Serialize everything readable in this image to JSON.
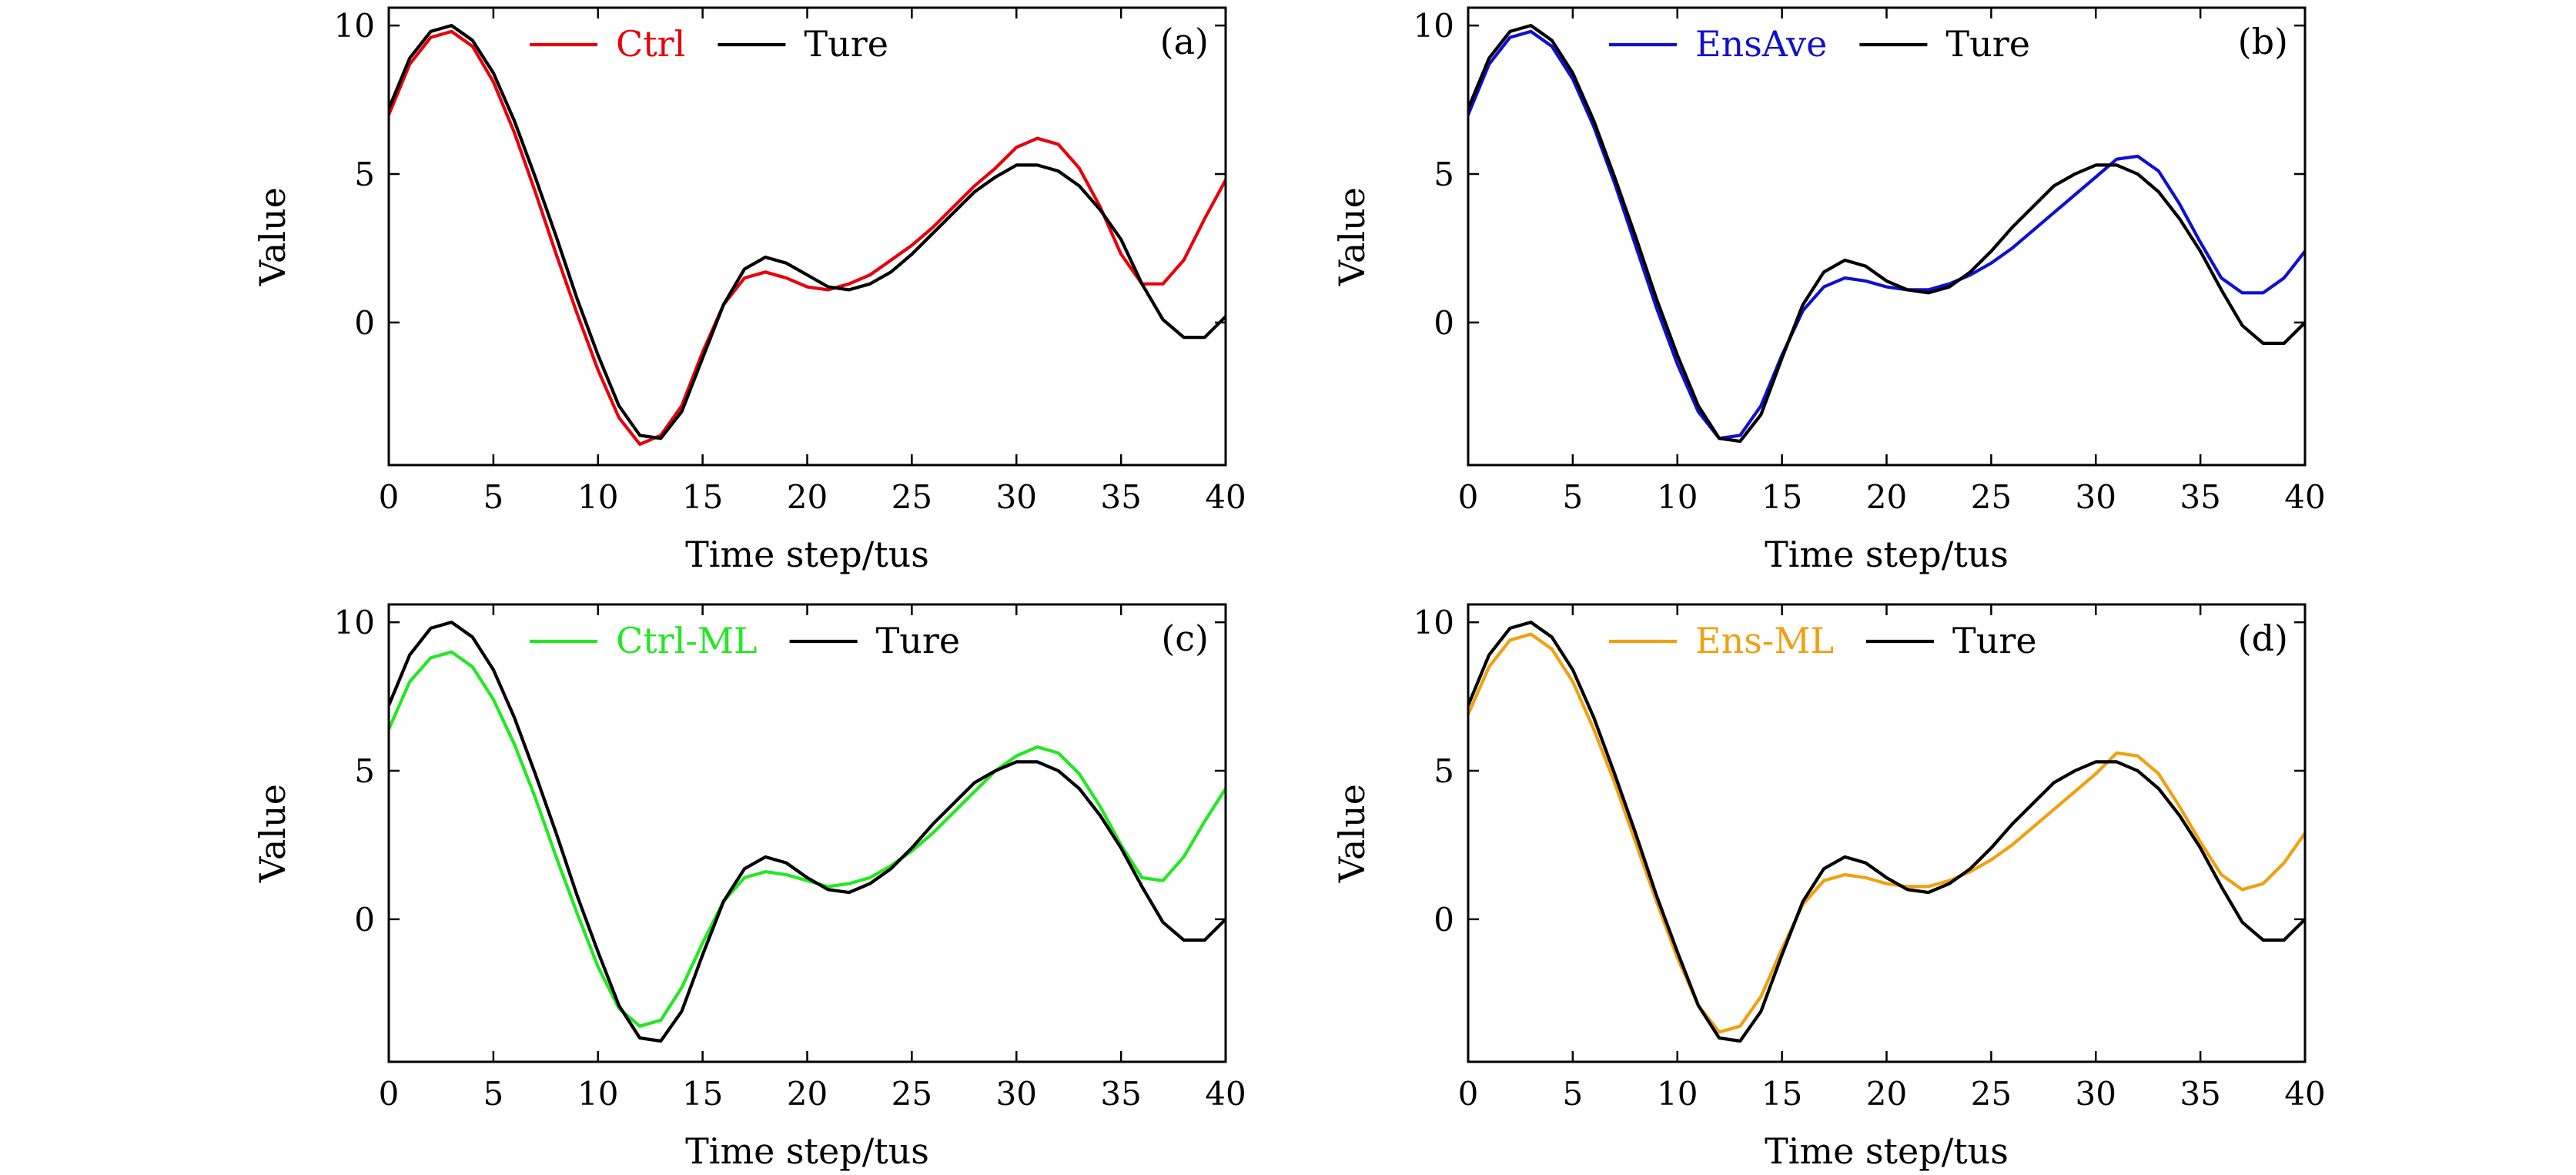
{
  "chart_data": [
    {
      "type": "line",
      "panel": "(a)",
      "xlabel": "Time step/tus",
      "ylabel": "Value",
      "xlim": [
        0,
        40
      ],
      "ylim": [
        -4.8,
        10.6
      ],
      "xticks": [
        0,
        5,
        10,
        15,
        20,
        25,
        30,
        35,
        40
      ],
      "yticks": [
        0,
        5,
        10
      ],
      "legend_position": "top-center",
      "series": [
        {
          "name": "Ctrl",
          "color": "#e8000b",
          "x": [
            0,
            1,
            2,
            3,
            4,
            5,
            6,
            7,
            8,
            9,
            10,
            11,
            12,
            13,
            14,
            15,
            16,
            17,
            18,
            19,
            20,
            21,
            22,
            23,
            24,
            25,
            26,
            27,
            28,
            29,
            30,
            31,
            32,
            33,
            34,
            35,
            36,
            37,
            38,
            39,
            40
          ],
          "values": [
            7.0,
            8.7,
            9.6,
            9.8,
            9.3,
            8.1,
            6.4,
            4.4,
            2.3,
            0.3,
            -1.6,
            -3.2,
            -4.1,
            -3.8,
            -2.8,
            -1.0,
            0.6,
            1.5,
            1.7,
            1.5,
            1.2,
            1.1,
            1.3,
            1.6,
            2.1,
            2.6,
            3.2,
            3.9,
            4.6,
            5.2,
            5.9,
            6.2,
            6.0,
            5.2,
            3.9,
            2.3,
            1.3,
            1.3,
            2.1,
            3.5,
            4.8
          ]
        },
        {
          "name": "Ture",
          "color": "#000000",
          "x": [
            0,
            1,
            2,
            3,
            4,
            5,
            6,
            7,
            8,
            9,
            10,
            11,
            12,
            13,
            14,
            15,
            16,
            17,
            18,
            19,
            20,
            21,
            22,
            23,
            24,
            25,
            26,
            27,
            28,
            29,
            30,
            31,
            32,
            33,
            34,
            35,
            36,
            37,
            38,
            39,
            40
          ],
          "values": [
            7.2,
            8.9,
            9.8,
            10.0,
            9.5,
            8.4,
            6.8,
            4.9,
            2.9,
            0.8,
            -1.1,
            -2.8,
            -3.8,
            -3.9,
            -3.0,
            -1.2,
            0.6,
            1.8,
            2.2,
            2.0,
            1.6,
            1.2,
            1.1,
            1.3,
            1.7,
            2.3,
            3.0,
            3.7,
            4.4,
            4.9,
            5.3,
            5.3,
            5.1,
            4.6,
            3.8,
            2.8,
            1.3,
            0.1,
            -0.5,
            -0.5,
            0.2
          ]
        }
      ]
    },
    {
      "type": "line",
      "panel": "(b)",
      "xlabel": "Time step/tus",
      "ylabel": "Value",
      "xlim": [
        0,
        40
      ],
      "ylim": [
        -4.8,
        10.6
      ],
      "xticks": [
        0,
        5,
        10,
        15,
        20,
        25,
        30,
        35,
        40
      ],
      "yticks": [
        0,
        5,
        10
      ],
      "legend_position": "top-center",
      "series": [
        {
          "name": "EnsAve",
          "color": "#1010d0",
          "x": [
            0,
            1,
            2,
            3,
            4,
            5,
            6,
            7,
            8,
            9,
            10,
            11,
            12,
            13,
            14,
            15,
            16,
            17,
            18,
            19,
            20,
            21,
            22,
            23,
            24,
            25,
            26,
            27,
            28,
            29,
            30,
            31,
            32,
            33,
            34,
            35,
            36,
            37,
            38,
            39,
            40
          ],
          "values": [
            7.0,
            8.7,
            9.6,
            9.8,
            9.3,
            8.2,
            6.6,
            4.7,
            2.6,
            0.5,
            -1.4,
            -3.0,
            -3.9,
            -3.8,
            -2.8,
            -1.1,
            0.4,
            1.2,
            1.5,
            1.4,
            1.2,
            1.1,
            1.1,
            1.3,
            1.6,
            2.0,
            2.5,
            3.1,
            3.7,
            4.3,
            4.9,
            5.5,
            5.6,
            5.1,
            4.0,
            2.7,
            1.5,
            1.0,
            1.0,
            1.5,
            2.4
          ]
        },
        {
          "name": "Ture",
          "color": "#000000",
          "x": [
            0,
            1,
            2,
            3,
            4,
            5,
            6,
            7,
            8,
            9,
            10,
            11,
            12,
            13,
            14,
            15,
            16,
            17,
            18,
            19,
            20,
            21,
            22,
            23,
            24,
            25,
            26,
            27,
            28,
            29,
            30,
            31,
            32,
            33,
            34,
            35,
            36,
            37,
            38,
            39,
            40
          ],
          "values": [
            7.2,
            8.9,
            9.8,
            10.0,
            9.5,
            8.4,
            6.8,
            4.9,
            2.9,
            0.8,
            -1.1,
            -2.8,
            -3.9,
            -4.0,
            -3.1,
            -1.2,
            0.6,
            1.7,
            2.1,
            1.9,
            1.4,
            1.1,
            1.0,
            1.2,
            1.7,
            2.4,
            3.2,
            3.9,
            4.6,
            5.0,
            5.3,
            5.3,
            5.0,
            4.4,
            3.5,
            2.4,
            1.1,
            -0.1,
            -0.7,
            -0.7,
            0.0
          ]
        }
      ]
    },
    {
      "type": "line",
      "panel": "(c)",
      "xlabel": "Time step/tus",
      "ylabel": "Value",
      "xlim": [
        0,
        40
      ],
      "ylim": [
        -4.8,
        10.6
      ],
      "xticks": [
        0,
        5,
        10,
        15,
        20,
        25,
        30,
        35,
        40
      ],
      "yticks": [
        0,
        5,
        10
      ],
      "legend_position": "top-center",
      "series": [
        {
          "name": "Ctrl-ML",
          "color": "#22e822",
          "x": [
            0,
            1,
            2,
            3,
            4,
            5,
            6,
            7,
            8,
            9,
            10,
            11,
            12,
            13,
            14,
            15,
            16,
            17,
            18,
            19,
            20,
            21,
            22,
            23,
            24,
            25,
            26,
            27,
            28,
            29,
            30,
            31,
            32,
            33,
            34,
            35,
            36,
            37,
            38,
            39,
            40
          ],
          "values": [
            6.4,
            8.0,
            8.8,
            9.0,
            8.5,
            7.4,
            5.9,
            4.1,
            2.1,
            0.2,
            -1.6,
            -3.0,
            -3.6,
            -3.4,
            -2.3,
            -0.8,
            0.6,
            1.4,
            1.6,
            1.5,
            1.3,
            1.1,
            1.2,
            1.4,
            1.8,
            2.3,
            2.9,
            3.6,
            4.3,
            5.0,
            5.5,
            5.8,
            5.6,
            4.9,
            3.8,
            2.5,
            1.4,
            1.3,
            2.1,
            3.3,
            4.4
          ]
        },
        {
          "name": "Ture",
          "color": "#000000",
          "x": [
            0,
            1,
            2,
            3,
            4,
            5,
            6,
            7,
            8,
            9,
            10,
            11,
            12,
            13,
            14,
            15,
            16,
            17,
            18,
            19,
            20,
            21,
            22,
            23,
            24,
            25,
            26,
            27,
            28,
            29,
            30,
            31,
            32,
            33,
            34,
            35,
            36,
            37,
            38,
            39,
            40
          ],
          "values": [
            7.2,
            8.9,
            9.8,
            10.0,
            9.5,
            8.4,
            6.8,
            4.9,
            2.9,
            0.8,
            -1.1,
            -2.9,
            -4.0,
            -4.1,
            -3.1,
            -1.2,
            0.6,
            1.7,
            2.1,
            1.9,
            1.4,
            1.0,
            0.9,
            1.2,
            1.7,
            2.4,
            3.2,
            3.9,
            4.6,
            5.0,
            5.3,
            5.3,
            5.0,
            4.4,
            3.5,
            2.4,
            1.1,
            -0.1,
            -0.7,
            -0.7,
            0.0
          ]
        }
      ]
    },
    {
      "type": "line",
      "panel": "(d)",
      "xlabel": "Time step/tus",
      "ylabel": "Value",
      "xlim": [
        0,
        40
      ],
      "ylim": [
        -4.8,
        10.6
      ],
      "xticks": [
        0,
        5,
        10,
        15,
        20,
        25,
        30,
        35,
        40
      ],
      "yticks": [
        0,
        5,
        10
      ],
      "legend_position": "top-center",
      "series": [
        {
          "name": "Ens-ML",
          "color": "#f0a010",
          "x": [
            0,
            1,
            2,
            3,
            4,
            5,
            6,
            7,
            8,
            9,
            10,
            11,
            12,
            13,
            14,
            15,
            16,
            17,
            18,
            19,
            20,
            21,
            22,
            23,
            24,
            25,
            26,
            27,
            28,
            29,
            30,
            31,
            32,
            33,
            34,
            35,
            36,
            37,
            38,
            39,
            40
          ],
          "values": [
            6.9,
            8.5,
            9.4,
            9.6,
            9.1,
            8.0,
            6.4,
            4.6,
            2.6,
            0.6,
            -1.3,
            -2.9,
            -3.8,
            -3.6,
            -2.6,
            -1.0,
            0.5,
            1.3,
            1.5,
            1.4,
            1.2,
            1.1,
            1.1,
            1.3,
            1.6,
            2.0,
            2.5,
            3.1,
            3.7,
            4.3,
            4.9,
            5.6,
            5.5,
            4.9,
            3.8,
            2.6,
            1.5,
            1.0,
            1.2,
            1.9,
            2.9
          ]
        },
        {
          "name": "Ture",
          "color": "#000000",
          "x": [
            0,
            1,
            2,
            3,
            4,
            5,
            6,
            7,
            8,
            9,
            10,
            11,
            12,
            13,
            14,
            15,
            16,
            17,
            18,
            19,
            20,
            21,
            22,
            23,
            24,
            25,
            26,
            27,
            28,
            29,
            30,
            31,
            32,
            33,
            34,
            35,
            36,
            37,
            38,
            39,
            40
          ],
          "values": [
            7.2,
            8.9,
            9.8,
            10.0,
            9.5,
            8.4,
            6.8,
            4.9,
            2.9,
            0.8,
            -1.1,
            -2.9,
            -4.0,
            -4.1,
            -3.1,
            -1.2,
            0.6,
            1.7,
            2.1,
            1.9,
            1.4,
            1.0,
            0.9,
            1.2,
            1.7,
            2.4,
            3.2,
            3.9,
            4.6,
            5.0,
            5.3,
            5.3,
            5.0,
            4.4,
            3.5,
            2.4,
            1.1,
            -0.1,
            -0.7,
            -0.7,
            0.0
          ]
        }
      ]
    }
  ]
}
